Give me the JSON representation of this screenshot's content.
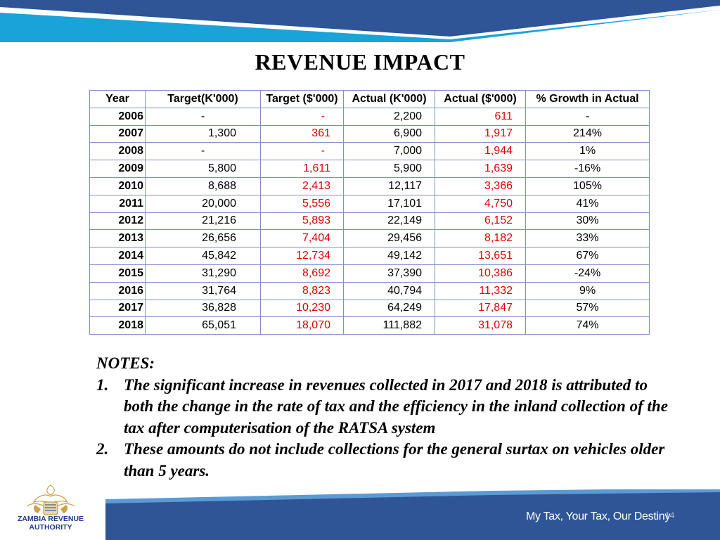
{
  "title": "REVENUE IMPACT",
  "table": {
    "headers": [
      "Year",
      "Target(K'000)",
      "Target ($'000)",
      "Actual (K'000)",
      "Actual ($'000)",
      "% Growth in Actual"
    ],
    "rows": [
      [
        "2006",
        "-",
        "-",
        "2,200",
        "611",
        "-"
      ],
      [
        "2007",
        "1,300",
        "361",
        "6,900",
        "1,917",
        "214%"
      ],
      [
        "2008",
        "-",
        "-",
        "7,000",
        "1,944",
        "1%"
      ],
      [
        "2009",
        "5,800",
        "1,611",
        "5,900",
        "1,639",
        "-16%"
      ],
      [
        "2010",
        "8,688",
        "2,413",
        "12,117",
        "3,366",
        "105%"
      ],
      [
        "2011",
        "20,000",
        "5,556",
        "17,101",
        "4,750",
        "41%"
      ],
      [
        "2012",
        "21,216",
        "5,893",
        "22,149",
        "6,152",
        "30%"
      ],
      [
        "2013",
        "26,656",
        "7,404",
        "29,456",
        "8,182",
        "33%"
      ],
      [
        "2014",
        "45,842",
        "12,734",
        "49,142",
        "13,651",
        "67%"
      ],
      [
        "2015",
        "31,290",
        "8,692",
        "37,390",
        "10,386",
        "-24%"
      ],
      [
        "2016",
        "31,764",
        "8,823",
        "40,794",
        "11,332",
        "9%"
      ],
      [
        "2017",
        "36,828",
        "10,230",
        "64,249",
        "17,847",
        "57%"
      ],
      [
        "2018",
        "65,051",
        "18,070",
        "111,882",
        "31,078",
        "74%"
      ]
    ]
  },
  "notes": {
    "heading": "NOTES:",
    "items": [
      {
        "num": "1.",
        "text": "The significant increase in revenues collected in 2017 and 2018 is attributed to both the change in the rate of tax and the efficiency in the inland collection of the tax after computerisation of the RATSA system"
      },
      {
        "num": "2.",
        "text": "These amounts do not include collections for the general surtax on vehicles older than 5 years."
      }
    ]
  },
  "footer": {
    "logo_text_line1": "ZAMBIA REVENUE",
    "logo_text_line2": "AUTHORITY",
    "slogan": "My  Tax, Your Tax, Our Destiny",
    "page_number": "14"
  },
  "colors": {
    "banner_dark": "#2f5597",
    "banner_light": "#5b9bd5",
    "table_border": "#7f8fc7",
    "dollar_text": "#e00000"
  }
}
